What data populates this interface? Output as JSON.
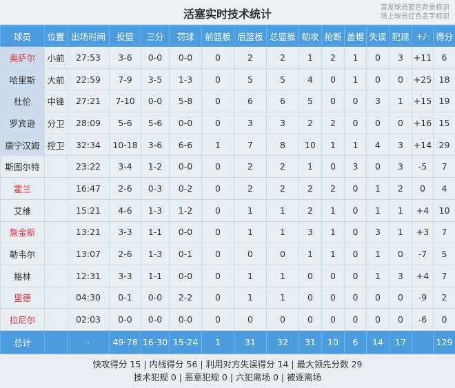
{
  "title": "活塞实时技术统计",
  "legend": [
    "首发球员蓝色背景标识",
    "场上球员红色名字标识"
  ],
  "colors": {
    "header": "#4c9de0",
    "starter_bg": "#cadcee",
    "on_court_name": "#e0303a"
  },
  "columns": [
    "球员",
    "位置",
    "出场时间",
    "投篮",
    "三分",
    "罚球",
    "前篮板",
    "后篮板",
    "总篮板",
    "助攻",
    "抢断",
    "盖帽",
    "失误",
    "犯规",
    "+/-",
    "得分"
  ],
  "players": [
    {
      "name": "奥萨尔",
      "starter": true,
      "on_court": true,
      "cells": [
        "小前",
        "27:53",
        "3-6",
        "0-0",
        "0-0",
        "0",
        "2",
        "2",
        "1",
        "2",
        "1",
        "0",
        "3",
        "+11",
        "6"
      ]
    },
    {
      "name": "哈里斯",
      "starter": true,
      "on_court": false,
      "cells": [
        "大前",
        "22:59",
        "7-9",
        "3-5",
        "1-3",
        "0",
        "5",
        "5",
        "4",
        "0",
        "1",
        "0",
        "0",
        "+25",
        "18"
      ]
    },
    {
      "name": "杜伦",
      "starter": true,
      "on_court": false,
      "cells": [
        "中锋",
        "27:21",
        "7-10",
        "0-0",
        "5-8",
        "0",
        "6",
        "6",
        "5",
        "0",
        "0",
        "3",
        "1",
        "+15",
        "19"
      ]
    },
    {
      "name": "罗宾逊",
      "starter": true,
      "on_court": false,
      "cells": [
        "分卫",
        "28:09",
        "5-6",
        "5-6",
        "0-0",
        "0",
        "3",
        "3",
        "2",
        "2",
        "0",
        "0",
        "0",
        "+16",
        "15"
      ]
    },
    {
      "name": "康宁汉姆",
      "starter": true,
      "on_court": false,
      "cells": [
        "控卫",
        "32:34",
        "10-18",
        "3-6",
        "6-6",
        "1",
        "7",
        "8",
        "10",
        "1",
        "1",
        "4",
        "3",
        "+14",
        "29"
      ]
    },
    {
      "name": "斯图尔特",
      "starter": false,
      "on_court": false,
      "cells": [
        "",
        "23:22",
        "3-4",
        "1-2",
        "0-0",
        "0",
        "2",
        "2",
        "1",
        "0",
        "3",
        "0",
        "3",
        "-5",
        "7"
      ]
    },
    {
      "name": "霍兰",
      "starter": false,
      "on_court": true,
      "cells": [
        "",
        "16:47",
        "2-6",
        "0-3",
        "0-2",
        "0",
        "2",
        "2",
        "2",
        "2",
        "0",
        "1",
        "2",
        "0",
        "4"
      ]
    },
    {
      "name": "艾维",
      "starter": false,
      "on_court": false,
      "cells": [
        "",
        "15:21",
        "4-6",
        "1-3",
        "1-2",
        "0",
        "1",
        "1",
        "2",
        "1",
        "0",
        "1",
        "1",
        "+4",
        "10"
      ]
    },
    {
      "name": "詹金斯",
      "starter": false,
      "on_court": true,
      "cells": [
        "",
        "13:21",
        "3-3",
        "1-1",
        "0-0",
        "0",
        "1",
        "1",
        "3",
        "1",
        "0",
        "3",
        "1",
        "+3",
        "7"
      ]
    },
    {
      "name": "勒韦尔",
      "starter": false,
      "on_court": false,
      "cells": [
        "",
        "13:07",
        "2-6",
        "1-3",
        "0-1",
        "0",
        "0",
        "0",
        "1",
        "1",
        "0",
        "1",
        "0",
        "-7",
        "5"
      ]
    },
    {
      "name": "格林",
      "starter": false,
      "on_court": false,
      "cells": [
        "",
        "12:31",
        "3-3",
        "1-1",
        "0-0",
        "0",
        "1",
        "1",
        "0",
        "0",
        "0",
        "1",
        "3",
        "+4",
        "7"
      ]
    },
    {
      "name": "里德",
      "starter": false,
      "on_court": true,
      "cells": [
        "",
        "04:30",
        "0-1",
        "0-0",
        "2-2",
        "0",
        "1",
        "1",
        "0",
        "0",
        "0",
        "0",
        "0",
        "-9",
        "2"
      ]
    },
    {
      "name": "拉尼尔",
      "starter": false,
      "on_court": true,
      "cells": [
        "",
        "02:03",
        "0-0",
        "0-0",
        "0-0",
        "0",
        "0",
        "0",
        "0",
        "0",
        "0",
        "0",
        "0",
        "-6",
        "0"
      ]
    }
  ],
  "total": {
    "label": "总计",
    "cells": [
      "",
      "-",
      "49-78",
      "16-30",
      "15-24",
      "1",
      "31",
      "32",
      "31",
      "10",
      "6",
      "14",
      "17",
      "",
      "129"
    ]
  },
  "footer": [
    "快攻得分 15 | 内线得分 56 | 利用对方失误得分 14 | 最大领先分数 29",
    "技术犯规 0 | 恶意犯规 0 | 六犯离场 0 | 被逐离场"
  ]
}
